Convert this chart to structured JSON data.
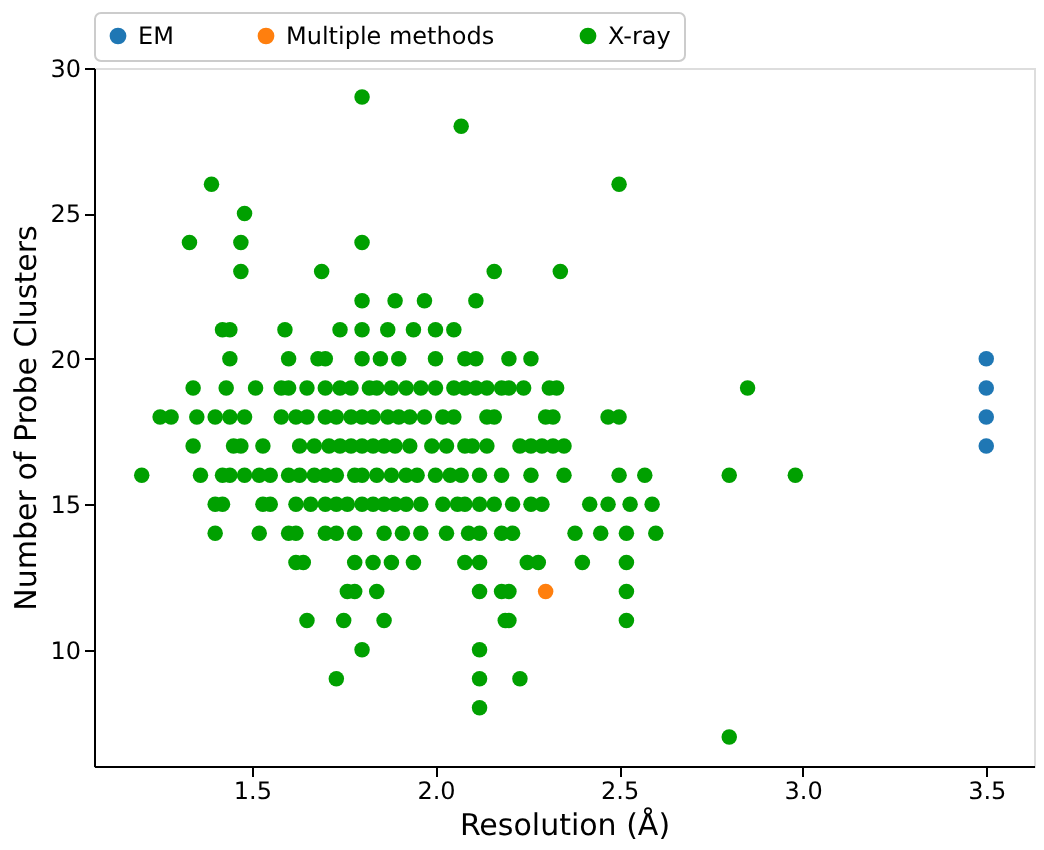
{
  "chart_data": {
    "type": "scatter",
    "xlabel": "Resolution (Å)",
    "ylabel": "Number of Probe Clusters",
    "xlim": [
      1.07,
      3.63
    ],
    "xticks": [
      1.5,
      {
        "value": 2,
        "label": "2.0"
      },
      2.5,
      {
        "value": 3,
        "label": "3.0"
      },
      3.5
    ],
    "ylim": [
      6,
      30
    ],
    "yticks": [
      10,
      15,
      20,
      25,
      30
    ],
    "grid": false,
    "legend": "top",
    "marker": "circle",
    "series": [
      {
        "name": "EM",
        "color": "#1f77b4",
        "x": [
          3.5,
          3.5,
          3.5,
          3.5
        ],
        "values": [
          17,
          18,
          19,
          20
        ]
      },
      {
        "name": "Multiple methods",
        "color": "#ff7f0e",
        "x": [
          2.3
        ],
        "values": [
          12
        ]
      },
      {
        "name": "X-ray",
        "color": "#00a000",
        "x": [
          1.8,
          2.07,
          1.39,
          2.5,
          1.48,
          1.33,
          1.47,
          1.8,
          1.47,
          1.69,
          2.16,
          2.34,
          1.8,
          1.89,
          1.97,
          2.11,
          1.42,
          1.44,
          1.59,
          1.74,
          1.8,
          1.87,
          1.94,
          2.0,
          2.05,
          1.44,
          1.6,
          1.68,
          1.7,
          1.8,
          1.85,
          1.9,
          2.0,
          2.08,
          2.11,
          2.2,
          2.26,
          1.34,
          1.43,
          1.51,
          1.58,
          1.6,
          1.65,
          1.7,
          1.74,
          1.77,
          1.82,
          1.84,
          1.88,
          1.92,
          1.96,
          2.0,
          2.05,
          2.08,
          2.11,
          2.14,
          2.18,
          2.2,
          2.24,
          2.31,
          2.33,
          2.85,
          1.25,
          1.28,
          1.35,
          1.4,
          1.44,
          1.48,
          1.58,
          1.62,
          1.65,
          1.7,
          1.73,
          1.77,
          1.8,
          1.83,
          1.87,
          1.9,
          1.93,
          1.97,
          2.02,
          2.05,
          2.14,
          2.16,
          2.3,
          2.32,
          2.47,
          2.5,
          1.34,
          1.45,
          1.47,
          1.53,
          1.63,
          1.67,
          1.71,
          1.74,
          1.77,
          1.8,
          1.83,
          1.86,
          1.89,
          1.93,
          1.99,
          2.03,
          2.08,
          2.1,
          2.14,
          2.23,
          2.26,
          2.29,
          2.32,
          2.35,
          1.2,
          1.36,
          1.42,
          1.44,
          1.48,
          1.52,
          1.55,
          1.6,
          1.63,
          1.67,
          1.7,
          1.73,
          1.78,
          1.8,
          1.84,
          1.88,
          1.92,
          1.95,
          2.0,
          2.04,
          2.07,
          2.12,
          2.18,
          2.26,
          2.35,
          2.5,
          2.57,
          2.8,
          2.98,
          1.4,
          1.42,
          1.53,
          1.55,
          1.62,
          1.66,
          1.7,
          1.73,
          1.76,
          1.8,
          1.83,
          1.86,
          1.89,
          1.92,
          1.96,
          2.02,
          2.06,
          2.08,
          2.12,
          2.16,
          2.21,
          2.26,
          2.29,
          2.42,
          2.47,
          2.53,
          2.59,
          1.4,
          1.52,
          1.6,
          1.62,
          1.7,
          1.73,
          1.78,
          1.86,
          1.91,
          1.96,
          2.03,
          2.09,
          2.12,
          2.18,
          2.21,
          2.38,
          2.45,
          2.52,
          2.6,
          1.62,
          1.64,
          1.78,
          1.83,
          1.88,
          1.94,
          2.08,
          2.12,
          2.25,
          2.28,
          2.4,
          2.52,
          1.76,
          1.78,
          1.84,
          2.12,
          2.18,
          2.2,
          2.52,
          1.65,
          1.75,
          1.86,
          2.19,
          2.2,
          2.52,
          1.8,
          2.12,
          1.73,
          2.12,
          2.23,
          2.12,
          2.8
        ],
        "values": [
          29,
          28,
          26,
          26,
          25,
          24,
          24,
          24,
          23,
          23,
          23,
          23,
          22,
          22,
          22,
          22,
          21,
          21,
          21,
          21,
          21,
          21,
          21,
          21,
          21,
          20,
          20,
          20,
          20,
          20,
          20,
          20,
          20,
          20,
          20,
          20,
          20,
          19,
          19,
          19,
          19,
          19,
          19,
          19,
          19,
          19,
          19,
          19,
          19,
          19,
          19,
          19,
          19,
          19,
          19,
          19,
          19,
          19,
          19,
          19,
          19,
          19,
          18,
          18,
          18,
          18,
          18,
          18,
          18,
          18,
          18,
          18,
          18,
          18,
          18,
          18,
          18,
          18,
          18,
          18,
          18,
          18,
          18,
          18,
          18,
          18,
          18,
          18,
          17,
          17,
          17,
          17,
          17,
          17,
          17,
          17,
          17,
          17,
          17,
          17,
          17,
          17,
          17,
          17,
          17,
          17,
          17,
          17,
          17,
          17,
          17,
          17,
          16,
          16,
          16,
          16,
          16,
          16,
          16,
          16,
          16,
          16,
          16,
          16,
          16,
          16,
          16,
          16,
          16,
          16,
          16,
          16,
          16,
          16,
          16,
          16,
          16,
          16,
          16,
          16,
          16,
          15,
          15,
          15,
          15,
          15,
          15,
          15,
          15,
          15,
          15,
          15,
          15,
          15,
          15,
          15,
          15,
          15,
          15,
          15,
          15,
          15,
          15,
          15,
          15,
          15,
          15,
          15,
          14,
          14,
          14,
          14,
          14,
          14,
          14,
          14,
          14,
          14,
          14,
          14,
          14,
          14,
          14,
          14,
          14,
          14,
          14,
          13,
          13,
          13,
          13,
          13,
          13,
          13,
          13,
          13,
          13,
          13,
          13,
          12,
          12,
          12,
          12,
          12,
          12,
          12,
          11,
          11,
          11,
          11,
          11,
          11,
          10,
          10,
          9,
          9,
          9,
          8,
          7
        ]
      }
    ]
  }
}
